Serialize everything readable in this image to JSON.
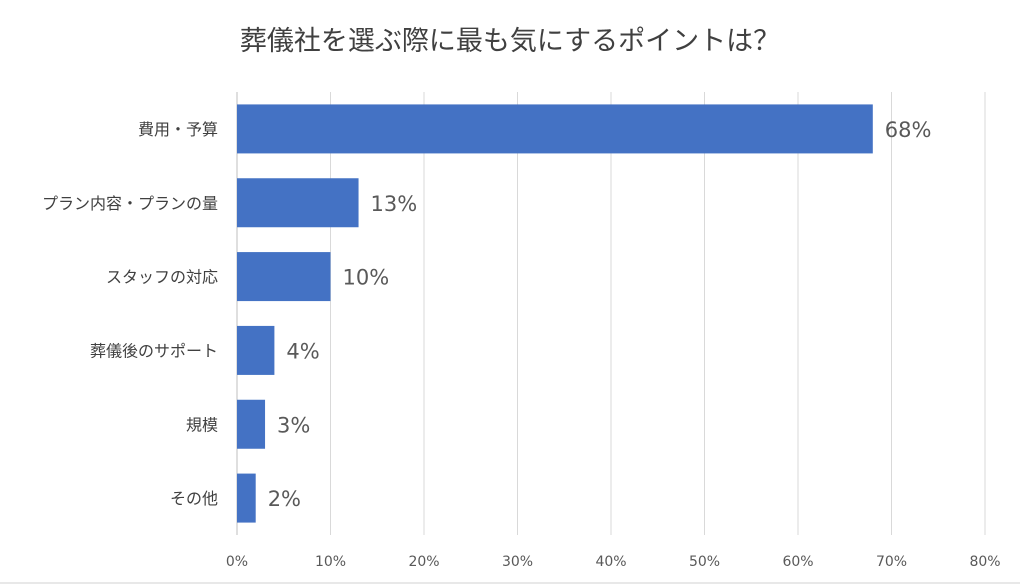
{
  "chart_data": {
    "type": "bar",
    "orientation": "horizontal",
    "title": "葬儀社を選ぶ際に最も気にするポイントは？",
    "categories": [
      "費用・予算",
      "プラン内容・プランの量",
      "スタッフの対応",
      "葬儀後のサポート",
      "規模",
      "その他"
    ],
    "values": [
      68,
      13,
      10,
      4,
      3,
      2
    ],
    "data_labels": [
      "68%",
      "13%",
      "10%",
      "4%",
      "3%",
      "2%"
    ],
    "xlim": [
      0,
      80
    ],
    "x_ticks": [
      0,
      10,
      20,
      30,
      40,
      50,
      60,
      70,
      80
    ],
    "x_tick_labels": [
      "0%",
      "10%",
      "20%",
      "30%",
      "40%",
      "50%",
      "60%",
      "70%",
      "80%"
    ],
    "bar_color": "#4472C4",
    "grid": true,
    "legend": "none"
  }
}
